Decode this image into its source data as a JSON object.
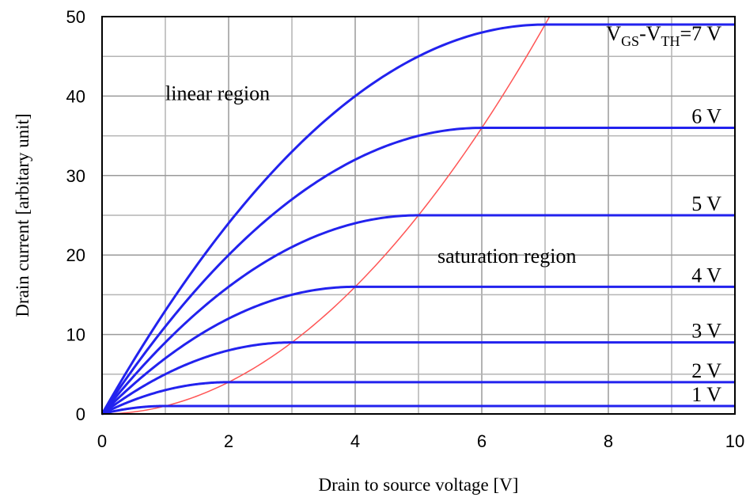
{
  "chart_data": {
    "type": "line",
    "title": "",
    "xlabel": "Drain to source voltage [V]",
    "ylabel": "Drain current [arbitary unit]",
    "xlim": [
      0,
      10
    ],
    "ylim": [
      0,
      50
    ],
    "x_ticks": [
      "0",
      "2",
      "4",
      "6",
      "8",
      "10"
    ],
    "y_ticks": [
      "0",
      "10",
      "20",
      "30",
      "40",
      "50"
    ],
    "grid": true,
    "colors": {
      "curves": "#2222ee",
      "boundary": "#ff5555",
      "grid": "#b4b4b4"
    },
    "annotations": [
      {
        "text": "linear region",
        "x": 1.0,
        "y": 39.5
      },
      {
        "text": "saturation region",
        "x": 5.3,
        "y": 19.0
      }
    ],
    "series": [
      {
        "vov": 1,
        "label": "1 V",
        "pinch_off": {
          "x": 1,
          "y": 1
        }
      },
      {
        "vov": 2,
        "label": "2 V",
        "pinch_off": {
          "x": 2,
          "y": 4
        }
      },
      {
        "vov": 3,
        "label": "3 V",
        "pinch_off": {
          "x": 3,
          "y": 9
        }
      },
      {
        "vov": 4,
        "label": "4 V",
        "pinch_off": {
          "x": 4,
          "y": 16
        }
      },
      {
        "vov": 5,
        "label": "5 V",
        "pinch_off": {
          "x": 5,
          "y": 25
        }
      },
      {
        "vov": 6,
        "label": "6 V",
        "pinch_off": {
          "x": 6,
          "y": 36
        }
      },
      {
        "vov": 7,
        "label_parts": [
          "V",
          "GS",
          "-V",
          "TH",
          "=7 V"
        ],
        "pinch_off": {
          "x": 7,
          "y": 49
        }
      }
    ],
    "boundary": {
      "description": "saturation boundary I = V^2",
      "points": [
        [
          0,
          0
        ],
        [
          1,
          1
        ],
        [
          2,
          4
        ],
        [
          3,
          9
        ],
        [
          4,
          16
        ],
        [
          5,
          25
        ],
        [
          6,
          36
        ],
        [
          7,
          49
        ],
        [
          7.07,
          50
        ]
      ]
    }
  }
}
